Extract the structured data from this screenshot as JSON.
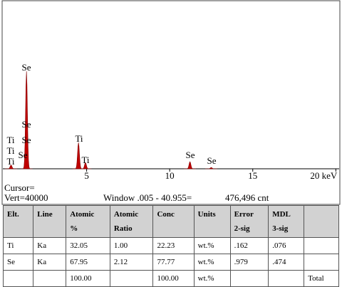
{
  "chart_data": {
    "type": "spectrum",
    "color": "#c00000",
    "energies": [
      0.45,
      1.38,
      4.51,
      4.93,
      11.22,
      12.5
    ],
    "counts": [
      900,
      23400,
      6300,
      1500,
      1700,
      300
    ],
    "xlim": [
      0,
      20.2
    ],
    "ylim": [
      0,
      40000
    ],
    "xticks": [
      5,
      10,
      15,
      {
        "value": 20,
        "label": "20 keV"
      }
    ],
    "peak_labels": [
      "Se",
      "Se",
      "Se",
      "Se",
      "Ti",
      "Ti",
      "Ti",
      "Ti",
      "Ti",
      "Se",
      "Se"
    ]
  },
  "status": {
    "cursor": "Cursor=",
    "vert": "Vert=40000",
    "window": "Window .005 - 40.955=",
    "total": "476,496 cnt"
  },
  "table": {
    "header": [
      [
        "Elt."
      ],
      [
        "Line"
      ],
      [
        "Atomic",
        "%"
      ],
      [
        "Atomic",
        "Ratio"
      ],
      [
        "Conc"
      ],
      [
        "Units"
      ],
      [
        "Error",
        "2-sig"
      ],
      [
        "MDL",
        "3-sig"
      ],
      null
    ],
    "rows": [
      [
        "Ti",
        "Ka",
        "32.05",
        "1.00",
        "22.23",
        "wt.%",
        ".162",
        ".076",
        null
      ],
      [
        "Se",
        "Ka",
        "67.95",
        "2.12",
        "77.77",
        "wt.%",
        ".979",
        ".474",
        null
      ],
      [
        null,
        null,
        "100.00",
        null,
        "100.00",
        "wt.%",
        null,
        null,
        "Total"
      ]
    ]
  }
}
